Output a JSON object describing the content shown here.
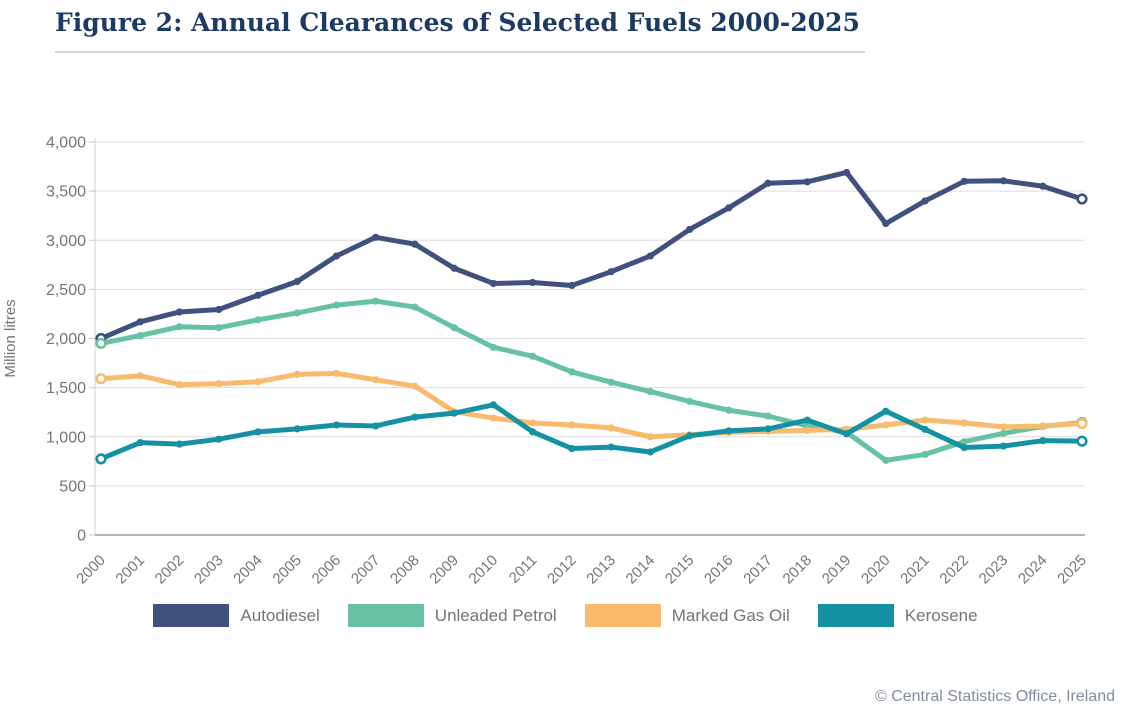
{
  "header": {
    "title": "Figure 2: Annual Clearances of Selected Fuels 2000-2025"
  },
  "footer": {
    "copyright": "© Central Statistics Office, Ireland"
  },
  "colors": {
    "title_navy": "#1c3a63",
    "axis_text_grey": "#757575",
    "gridline_grey": "#dcdcdc",
    "autodiesel": "#41517f",
    "unleaded_petrol": "#66c2a2",
    "marked_gas_oil": "#f8bb6e",
    "kerosene": "#1492a4"
  },
  "chart_data": {
    "type": "line",
    "title": "Figure 2: Annual Clearances of Selected Fuels 2000-2025",
    "xlabel": "",
    "ylabel": "Million litres",
    "ylim": [
      0,
      4000
    ],
    "ytick_step": 500,
    "ytick_labels": [
      "0",
      "500",
      "1,000",
      "1,500",
      "2,000",
      "2,500",
      "3,000",
      "3,500",
      "4,000"
    ],
    "grid": true,
    "legend_position": "bottom",
    "x": [
      2000,
      2001,
      2002,
      2003,
      2004,
      2005,
      2006,
      2007,
      2008,
      2009,
      2010,
      2011,
      2012,
      2013,
      2014,
      2015,
      2016,
      2017,
      2018,
      2019,
      2020,
      2021,
      2022,
      2023,
      2024,
      2025
    ],
    "series": [
      {
        "name": "Autodiesel",
        "color": "#41517f",
        "values": [
          2000,
          2170,
          2270,
          2295,
          2440,
          2580,
          2840,
          3030,
          2960,
          2715,
          2560,
          2570,
          2540,
          2680,
          2840,
          3110,
          3330,
          3580,
          3595,
          3690,
          3170,
          3400,
          3600,
          3605,
          3550,
          3420
        ]
      },
      {
        "name": "Unleaded Petrol",
        "color": "#66c2a2",
        "values": [
          1950,
          2030,
          2120,
          2110,
          2190,
          2260,
          2340,
          2380,
          2320,
          2110,
          1910,
          1820,
          1660,
          1555,
          1460,
          1360,
          1270,
          1210,
          1110,
          1045,
          760,
          820,
          950,
          1035,
          1105,
          1145
        ]
      },
      {
        "name": "Marked Gas Oil",
        "color": "#f8bb6e",
        "values": [
          1590,
          1620,
          1530,
          1540,
          1560,
          1635,
          1645,
          1580,
          1515,
          1255,
          1190,
          1140,
          1120,
          1090,
          1000,
          1020,
          1045,
          1055,
          1065,
          1075,
          1120,
          1170,
          1140,
          1100,
          1110,
          1135
        ]
      },
      {
        "name": "Kerosene",
        "color": "#1492a4",
        "values": [
          775,
          940,
          925,
          975,
          1050,
          1080,
          1120,
          1110,
          1200,
          1240,
          1325,
          1050,
          880,
          895,
          845,
          1010,
          1060,
          1080,
          1170,
          1030,
          1260,
          1075,
          890,
          905,
          960,
          955
        ]
      }
    ]
  }
}
